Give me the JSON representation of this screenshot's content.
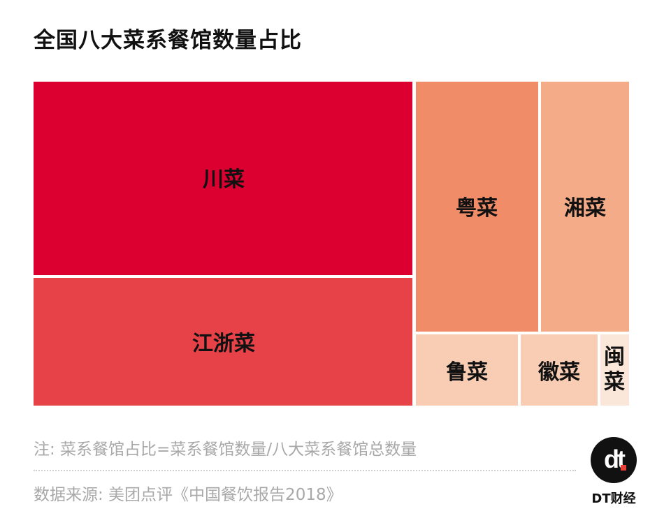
{
  "title": "全国八大菜系餐馆数量占比",
  "chart_data": {
    "type": "treemap",
    "title": "全国八大菜系餐馆数量占比",
    "cells": [
      {
        "label": "川菜",
        "color": "#dc0030"
      },
      {
        "label": "江浙菜",
        "color": "#e64248"
      },
      {
        "label": "粤菜",
        "color": "#f08c67"
      },
      {
        "label": "湘菜",
        "color": "#f4ab88"
      },
      {
        "label": "鲁菜",
        "color": "#f8cdb3"
      },
      {
        "label": "徽菜",
        "color": "#f8cdb3"
      },
      {
        "label": "闽菜",
        "color": "#fbe6da"
      }
    ]
  },
  "footnote": "注: 菜系餐馆占比=菜系餐馆数量/八大菜系餐馆总数量",
  "source": "数据来源: 美团点评《中国餐饮报告2018》",
  "brand": {
    "mark": "dt",
    "name": "DT财经",
    "accent": "#e8403a"
  }
}
